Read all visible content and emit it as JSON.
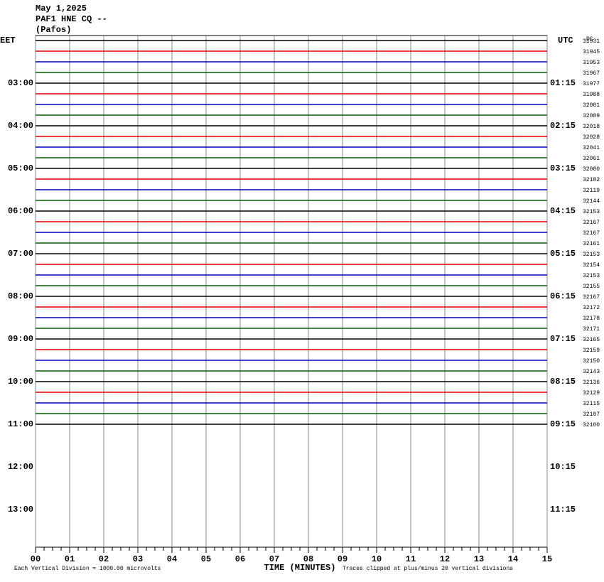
{
  "chart_data": {
    "type": "helicorder",
    "title_lines": [
      "May 1,2025",
      "PAF1 HNE CQ --",
      "(Pafos)"
    ],
    "left_axis_label": "EET",
    "right_axis_label": "UTC",
    "dc_label": "DC",
    "left_times": [
      "03:00",
      "04:00",
      "05:00",
      "06:00",
      "07:00",
      "08:00",
      "09:00",
      "10:00",
      "11:00",
      "12:00",
      "13:00"
    ],
    "right_times": [
      "01:15",
      "02:15",
      "03:15",
      "04:15",
      "05:15",
      "06:15",
      "07:15",
      "08:15",
      "09:15",
      "10:15",
      "11:15"
    ],
    "dc_values": [
      31931,
      31945,
      31953,
      31967,
      31977,
      31988,
      32001,
      32009,
      32018,
      32028,
      32041,
      32061,
      32080,
      32102,
      32119,
      32144,
      32153,
      32167,
      32167,
      32161,
      32153,
      32154,
      32153,
      32155,
      32167,
      32172,
      32178,
      32171,
      32165,
      32159,
      32150,
      32143,
      32136,
      32129,
      32115,
      32107,
      32100
    ],
    "trace_colors": [
      "#000000",
      "#e00000",
      "#0000c0",
      "#006400"
    ],
    "xlabel": "TIME (MINUTES)",
    "xlim": [
      0,
      15
    ],
    "xticks": [
      {
        "value": 0,
        "label": "00"
      },
      {
        "value": 1,
        "label": "01"
      },
      {
        "value": 2,
        "label": "02"
      },
      {
        "value": 3,
        "label": "03"
      },
      {
        "value": 4,
        "label": "04"
      },
      {
        "value": 5,
        "label": "05"
      },
      {
        "value": 6,
        "label": "06"
      },
      {
        "value": 7,
        "label": "07"
      },
      {
        "value": 8,
        "label": "08"
      },
      {
        "value": 9,
        "label": "09"
      },
      10,
      11,
      12,
      13,
      14,
      15
    ],
    "grid": true,
    "footer_left": "Each Vertical Division = 1000.00 microvolts",
    "footer_right": "Traces clipped at plus/minus 20 vertical divisions"
  }
}
